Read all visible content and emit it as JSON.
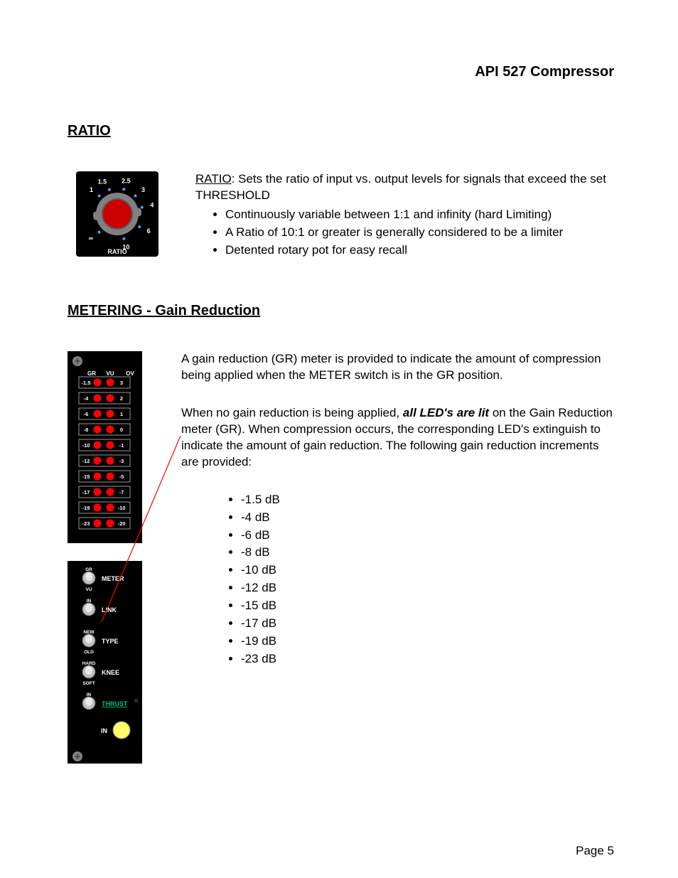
{
  "header": {
    "title": "API 527 Compressor"
  },
  "ratio": {
    "heading": "RATIO",
    "label": "RATIO",
    "body": ": Sets the ratio of input vs. output levels for signals that exceed the set THRESHOLD",
    "bullets": [
      "Continuously variable between 1:1 and infinity (hard Limiting)",
      "A Ratio of 10:1 or greater is generally considered to be a limiter",
      "Detented rotary pot for easy recall"
    ],
    "knob": {
      "bg": "#000000",
      "face": "#808080",
      "pointer": "#cc0000",
      "dot": "#4aa0ff",
      "text": "#ffffff",
      "labels": [
        "1",
        "1.5",
        "2.5",
        "3",
        "4",
        "6",
        "10",
        "∞"
      ],
      "bottom": "RATIO"
    }
  },
  "metering": {
    "heading": "METERING - Gain Reduction",
    "p1": "A gain reduction (GR) meter is provided to indicate the amount of compression being applied when the METER switch is in the GR position.",
    "p2a": "When no gain reduction is being applied, ",
    "p2b": "all LED's are lit",
    "p2c": " on the Gain Reduction meter (GR). When compression occurs, the corresponding LED's extinguish to indicate the amount of gain reduction.  The following gain reduction increments are provided:",
    "db_values": [
      "-1.5 dB",
      "-4 dB",
      "-6 dB",
      "-8 dB",
      "-10 dB",
      "-12 dB",
      "-15 dB",
      "-17 dB",
      "-19 dB",
      "-23 dB"
    ],
    "meter_panel": {
      "bg": "#000000",
      "screw": "#808080",
      "text": "#ffffff",
      "led_on": "#ff0000",
      "led_border": "#ffffff",
      "cols": [
        "GR",
        "VU",
        "OV"
      ],
      "gr_labels": [
        "-1.5",
        "-4",
        "-6",
        "-8",
        "-10",
        "-12",
        "-15",
        "-17",
        "-19",
        "-23"
      ],
      "vu_labels": [
        "3",
        "2",
        "1",
        "0",
        "-1",
        "-3",
        "-5",
        "-7",
        "-10",
        "-20"
      ]
    },
    "switch_panel": {
      "bg": "#000000",
      "text": "#ffffff",
      "knob": "#c0c0c0",
      "knob_dark": "#606060",
      "in_led": "#ffff66",
      "thrust_color": "#00c080",
      "switches": [
        {
          "top": "GR",
          "bottom": "VU",
          "label": "METER"
        },
        {
          "top": "IN",
          "bottom": "",
          "label": "LINK"
        },
        {
          "top": "NEW",
          "bottom": "OLD",
          "label": "TYPE"
        },
        {
          "top": "HARD",
          "bottom": "SOFT",
          "label": "KNEE"
        },
        {
          "top": "IN",
          "bottom": "",
          "label": "THRUST"
        }
      ],
      "in_label": "IN"
    }
  },
  "footer": {
    "page": "Page 5"
  }
}
